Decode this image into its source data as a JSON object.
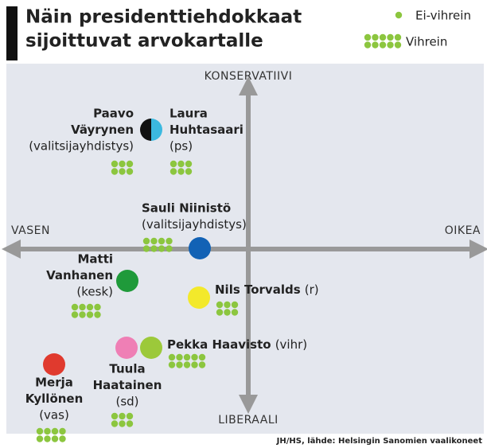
{
  "header": {
    "title_lines": [
      "Näin presidenttiehdokkaat",
      "sijoittuvat arvokartalle"
    ]
  },
  "legend": [
    {
      "label": "Ei-vihrein",
      "green_dots": 2
    },
    {
      "label": "Vihrein",
      "green_dots": 10
    }
  ],
  "axes": {
    "top": "KONSERVATIIVI",
    "bottom": "LIBERAALI",
    "left": "VASEN",
    "right": "OIKEA"
  },
  "candidates": [
    {
      "name": [
        "Paavo",
        "Väyrynen"
      ],
      "party": "(valitsijayhdistys)",
      "colors": [
        "#111111",
        "#3bb9e0"
      ],
      "green_dots": 6
    },
    {
      "name": [
        "Laura",
        "Huhtasaari"
      ],
      "party": "(ps)",
      "colors": [
        "#3bb9e0"
      ],
      "green_dots": 6
    },
    {
      "name": [
        "Sauli Niinistö"
      ],
      "party": "(valitsijayhdistys)",
      "colors": [
        "#1262b5"
      ],
      "green_dots": 8
    },
    {
      "name": [
        "Matti",
        "Vanhanen"
      ],
      "party": "(kesk)",
      "colors": [
        "#1f9a3a"
      ],
      "green_dots": 8
    },
    {
      "name": [
        "Nils Torvalds"
      ],
      "party": "(r)",
      "colors": [
        "#f3e92b"
      ],
      "green_dots": 6
    },
    {
      "name": [
        "Pekka Haavisto"
      ],
      "party": "(vihr)",
      "colors": [
        "#9cc93a"
      ],
      "green_dots": 10
    },
    {
      "name": [
        "Tuula",
        "Haatainen"
      ],
      "party": "(sd)",
      "colors": [
        "#ef7fb5"
      ],
      "green_dots": 6
    },
    {
      "name": [
        "Merja",
        "Kyllönen"
      ],
      "party": "(vas)",
      "colors": [
        "#e03a2e"
      ],
      "green_dots": 8
    }
  ],
  "source": "JH/HS, lähde: Helsingin Sanomien vaalikoneet"
}
